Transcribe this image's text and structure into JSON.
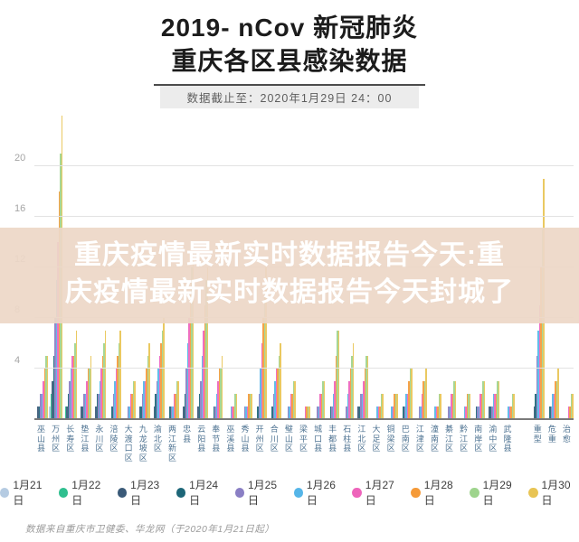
{
  "header": {
    "title_line1": "2019- nCov 新冠肺炎",
    "title_line2": "重庆各区县感染数据",
    "cutoff": "数据截止至：2020年1月29日 24：00"
  },
  "overlay": {
    "line1": "重庆疫情最新实时数据报告今天:重",
    "line2": "庆疫情最新实时数据报告今天封城了",
    "bg_color": "#edd7c7",
    "text_color": "#ffffff"
  },
  "chart_data": {
    "type": "bar",
    "title": "2019-nCov 新冠肺炎 重庆各区县感染数据",
    "subtitle": "数据截止至：2020年1月29日 24：00",
    "xlabel": "",
    "ylabel": "",
    "ylim": [
      0,
      24.3
    ],
    "yticks": [
      4,
      8,
      12,
      16,
      20
    ],
    "grid": true,
    "legend_position": "bottom",
    "gap_before_index": 33,
    "categories": [
      "巫山县",
      "万州区",
      "长寿区",
      "垫江县",
      "永川区",
      "涪陵区",
      "大渡口区",
      "九龙坡区",
      "渝北区",
      "两江新区",
      "忠县",
      "云阳县",
      "奉节县",
      "巫溪县",
      "秀山县",
      "开州区",
      "合川区",
      "璧山区",
      "梁平区",
      "城口县",
      "丰都县",
      "石柱县",
      "江北区",
      "大足区",
      "铜梁区",
      "巴南区",
      "江津区",
      "潼南区",
      "綦江区",
      "黔江区",
      "南岸区",
      "渝中区",
      "武隆县",
      "重型",
      "危重",
      "治愈"
    ],
    "series": [
      {
        "name": "1月21日",
        "color": "#b5cbe2",
        "values": [
          0,
          1,
          0,
          0,
          0,
          0,
          0,
          0,
          0,
          0,
          0,
          0,
          0,
          0,
          0,
          0,
          0,
          0,
          0,
          0,
          0,
          0,
          0,
          0,
          0,
          0,
          0,
          0,
          0,
          0,
          0,
          0,
          0,
          0,
          0,
          0
        ]
      },
      {
        "name": "1月22日",
        "color": "#2fbf8f",
        "values": [
          0,
          2,
          1,
          0,
          0,
          0,
          0,
          0,
          0,
          0,
          0,
          0,
          0,
          0,
          0,
          0,
          0,
          0,
          0,
          0,
          0,
          0,
          0,
          0,
          0,
          0,
          0,
          0,
          0,
          0,
          0,
          0,
          0,
          0,
          0,
          0
        ]
      },
      {
        "name": "1月23日",
        "color": "#3a5a78",
        "values": [
          1,
          3,
          1,
          1,
          1,
          0,
          0,
          1,
          1,
          0,
          1,
          1,
          0,
          0,
          0,
          0,
          0,
          0,
          0,
          0,
          0,
          0,
          1,
          0,
          0,
          0,
          0,
          0,
          0,
          0,
          0,
          1,
          0,
          1,
          0,
          0
        ]
      },
      {
        "name": "1月24日",
        "color": "#1d6678",
        "values": [
          1,
          5,
          2,
          1,
          2,
          1,
          0,
          1,
          2,
          1,
          2,
          2,
          1,
          0,
          0,
          1,
          1,
          0,
          0,
          0,
          1,
          0,
          1,
          0,
          0,
          1,
          0,
          0,
          0,
          0,
          1,
          1,
          0,
          2,
          1,
          0
        ]
      },
      {
        "name": "1月25日",
        "color": "#8a7fc4",
        "values": [
          2,
          8,
          3,
          2,
          2,
          2,
          1,
          2,
          3,
          1,
          4,
          3,
          1,
          0,
          1,
          2,
          2,
          1,
          0,
          1,
          1,
          1,
          2,
          0,
          0,
          1,
          1,
          0,
          1,
          0,
          1,
          1,
          0,
          5,
          1,
          0
        ]
      },
      {
        "name": "1月26日",
        "color": "#55b5e8",
        "values": [
          2,
          11,
          4,
          2,
          3,
          3,
          1,
          3,
          4,
          1,
          6,
          5,
          2,
          1,
          1,
          4,
          3,
          1,
          0,
          1,
          2,
          2,
          2,
          1,
          1,
          2,
          1,
          1,
          1,
          1,
          1,
          2,
          1,
          7,
          2,
          0
        ]
      },
      {
        "name": "1月27日",
        "color": "#ee64bb",
        "values": [
          3,
          14,
          5,
          3,
          4,
          4,
          2,
          3,
          5,
          2,
          8,
          7,
          3,
          1,
          1,
          6,
          4,
          2,
          1,
          2,
          3,
          3,
          3,
          1,
          1,
          2,
          2,
          1,
          2,
          1,
          2,
          2,
          1,
          9,
          2,
          1
        ]
      },
      {
        "name": "1月28日",
        "color": "#f59a38",
        "values": [
          4,
          18,
          5,
          4,
          5,
          5,
          2,
          4,
          6,
          2,
          10,
          9,
          4,
          1,
          2,
          8,
          4,
          2,
          1,
          2,
          5,
          4,
          4,
          1,
          2,
          3,
          3,
          1,
          2,
          2,
          2,
          2,
          1,
          12,
          3,
          1
        ]
      },
      {
        "name": "1月29日",
        "color": "#9ed48d",
        "values": [
          5,
          21,
          6,
          4,
          6,
          6,
          3,
          5,
          7,
          3,
          12,
          11,
          4,
          2,
          2,
          10,
          5,
          3,
          1,
          3,
          7,
          5,
          5,
          2,
          2,
          4,
          3,
          2,
          3,
          2,
          3,
          3,
          2,
          15,
          3,
          2
        ]
      },
      {
        "name": "1月30日",
        "color": "#e8c454",
        "values": [
          5,
          24,
          7,
          5,
          7,
          7,
          3,
          6,
          8,
          3,
          13,
          12,
          5,
          2,
          2,
          12,
          6,
          3,
          1,
          3,
          7,
          6,
          5,
          2,
          2,
          4,
          4,
          2,
          3,
          2,
          3,
          3,
          2,
          19,
          4,
          2
        ]
      }
    ]
  },
  "footer": {
    "source": "数据来自重庆市卫健委、华龙网（于2020年1月21日起）"
  }
}
